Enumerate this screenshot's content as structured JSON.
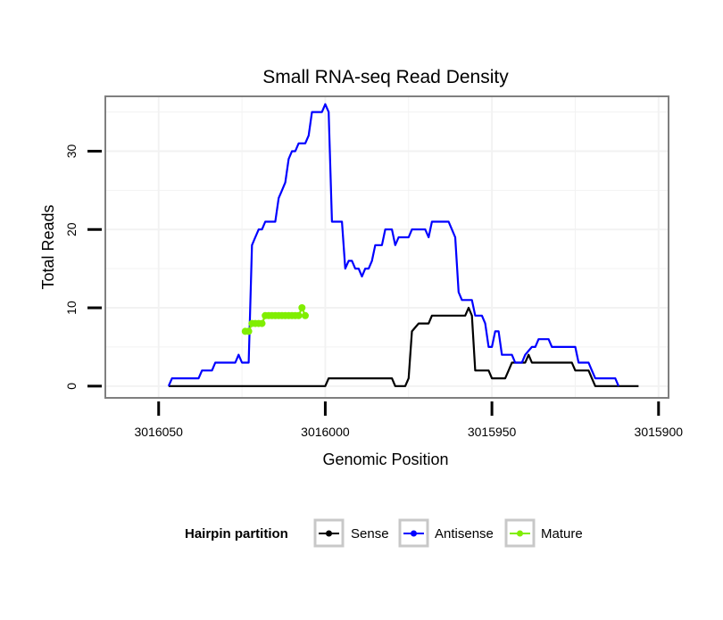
{
  "chart_data": {
    "type": "line",
    "title": "Small RNA-seq Read Density",
    "xlabel": "Genomic Position",
    "ylabel": "Total Reads",
    "xlim": [
      3016066,
      3015897
    ],
    "ylim": [
      -1.5,
      37
    ],
    "x_reversed": true,
    "xticks": [
      3016050,
      3016000,
      3015950,
      3015900
    ],
    "yticks": [
      0,
      10,
      20,
      30
    ],
    "grid": true,
    "legend": {
      "title": "Hairpin partition",
      "position": "bottom",
      "entries": [
        "Sense",
        "Antisense",
        "Mature"
      ]
    },
    "series": [
      {
        "name": "Sense",
        "color": "#000000",
        "points": [
          [
            3016047,
            0
          ],
          [
            3016000,
            0
          ],
          [
            3015999,
            1
          ],
          [
            3015980,
            1
          ],
          [
            3015979,
            0
          ],
          [
            3015976,
            0
          ],
          [
            3015975,
            1
          ],
          [
            3015974,
            7
          ],
          [
            3015972,
            8
          ],
          [
            3015969,
            8
          ],
          [
            3015968,
            9
          ],
          [
            3015958,
            9
          ],
          [
            3015957,
            10
          ],
          [
            3015956,
            9
          ],
          [
            3015955,
            2
          ],
          [
            3015951,
            2
          ],
          [
            3015950,
            1
          ],
          [
            3015946,
            1
          ],
          [
            3015945,
            2
          ],
          [
            3015944,
            3
          ],
          [
            3015940,
            3
          ],
          [
            3015939,
            4
          ],
          [
            3015938,
            3
          ],
          [
            3015926,
            3
          ],
          [
            3015925,
            2
          ],
          [
            3015921,
            2
          ],
          [
            3015920,
            1
          ],
          [
            3015919,
            0
          ],
          [
            3015906,
            0
          ]
        ]
      },
      {
        "name": "Antisense",
        "color": "#0000ff",
        "points": [
          [
            3016047,
            0
          ],
          [
            3016046,
            1
          ],
          [
            3016038,
            1
          ],
          [
            3016037,
            2
          ],
          [
            3016034,
            2
          ],
          [
            3016033,
            3
          ],
          [
            3016027,
            3
          ],
          [
            3016026,
            4
          ],
          [
            3016025,
            3
          ],
          [
            3016023,
            3
          ],
          [
            3016022,
            18
          ],
          [
            3016021,
            19
          ],
          [
            3016020,
            20
          ],
          [
            3016019,
            20
          ],
          [
            3016018,
            21
          ],
          [
            3016015,
            21
          ],
          [
            3016014,
            24
          ],
          [
            3016013,
            25
          ],
          [
            3016012,
            26
          ],
          [
            3016011,
            29
          ],
          [
            3016010,
            30
          ],
          [
            3016009,
            30
          ],
          [
            3016008,
            31
          ],
          [
            3016006,
            31
          ],
          [
            3016005,
            32
          ],
          [
            3016004,
            35
          ],
          [
            3016001,
            35
          ],
          [
            3016000,
            36
          ],
          [
            3015999,
            35
          ],
          [
            3015998,
            21
          ],
          [
            3015995,
            21
          ],
          [
            3015994,
            15
          ],
          [
            3015993,
            16
          ],
          [
            3015992,
            16
          ],
          [
            3015991,
            15
          ],
          [
            3015990,
            15
          ],
          [
            3015989,
            14
          ],
          [
            3015988,
            15
          ],
          [
            3015987,
            15
          ],
          [
            3015986,
            16
          ],
          [
            3015985,
            18
          ],
          [
            3015983,
            18
          ],
          [
            3015982,
            20
          ],
          [
            3015980,
            20
          ],
          [
            3015979,
            18
          ],
          [
            3015978,
            19
          ],
          [
            3015975,
            19
          ],
          [
            3015974,
            20
          ],
          [
            3015970,
            20
          ],
          [
            3015969,
            19
          ],
          [
            3015968,
            21
          ],
          [
            3015963,
            21
          ],
          [
            3015961,
            19
          ],
          [
            3015960,
            12
          ],
          [
            3015959,
            11
          ],
          [
            3015956,
            11
          ],
          [
            3015955,
            9
          ],
          [
            3015953,
            9
          ],
          [
            3015952,
            8
          ],
          [
            3015951,
            5
          ],
          [
            3015950,
            5
          ],
          [
            3015949,
            7
          ],
          [
            3015948,
            7
          ],
          [
            3015947,
            4
          ],
          [
            3015944,
            4
          ],
          [
            3015943,
            3
          ],
          [
            3015941,
            3
          ],
          [
            3015940,
            4
          ],
          [
            3015938,
            5
          ],
          [
            3015937,
            5
          ],
          [
            3015936,
            6
          ],
          [
            3015933,
            6
          ],
          [
            3015932,
            5
          ],
          [
            3015925,
            5
          ],
          [
            3015924,
            3
          ],
          [
            3015921,
            3
          ],
          [
            3015920,
            2
          ],
          [
            3015919,
            1
          ],
          [
            3015913,
            1
          ],
          [
            3015912,
            0
          ]
        ]
      },
      {
        "name": "Mature",
        "color": "#80ee00",
        "points": [
          [
            3016024,
            7
          ],
          [
            3016023,
            7
          ],
          [
            3016022,
            8
          ],
          [
            3016021,
            8
          ],
          [
            3016020,
            8
          ],
          [
            3016019,
            8
          ],
          [
            3016018,
            9
          ],
          [
            3016017,
            9
          ],
          [
            3016016,
            9
          ],
          [
            3016015,
            9
          ],
          [
            3016014,
            9
          ],
          [
            3016013,
            9
          ],
          [
            3016012,
            9
          ],
          [
            3016011,
            9
          ],
          [
            3016010,
            9
          ],
          [
            3016009,
            9
          ],
          [
            3016008,
            9
          ],
          [
            3016007,
            10
          ],
          [
            3016006,
            9
          ]
        ]
      }
    ]
  }
}
